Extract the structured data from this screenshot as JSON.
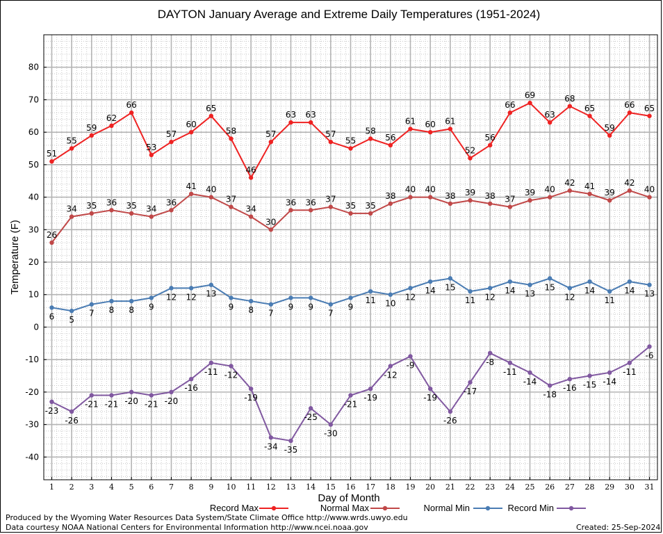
{
  "chart_data": {
    "type": "line",
    "title": "DAYTON January Average and Extreme Daily Temperatures (1951-2024)",
    "xlabel": "Day of Month",
    "ylabel": "Temperature (F)",
    "ylim": [
      -47,
      90
    ],
    "yticks": [
      -40,
      -30,
      -20,
      -10,
      0,
      10,
      20,
      30,
      40,
      50,
      60,
      70,
      80
    ],
    "xlim": [
      0.6,
      31.4
    ],
    "x": [
      1,
      2,
      3,
      4,
      5,
      6,
      7,
      8,
      9,
      10,
      11,
      12,
      13,
      14,
      15,
      16,
      17,
      18,
      19,
      20,
      21,
      22,
      23,
      24,
      25,
      26,
      27,
      28,
      29,
      30,
      31
    ],
    "grid": true,
    "legend": "bottom",
    "series": [
      {
        "name": "Record Max",
        "color": "#ee2222",
        "values": [
          51,
          55,
          59,
          62,
          66,
          53,
          57,
          60,
          65,
          58,
          46,
          57,
          63,
          63,
          57,
          55,
          58,
          56,
          61,
          60,
          61,
          52,
          56,
          66,
          69,
          63,
          68,
          65,
          59,
          66,
          65
        ]
      },
      {
        "name": "Normal Max",
        "color": "#c04848",
        "values": [
          26,
          34,
          35,
          36,
          35,
          34,
          36,
          41,
          40,
          37,
          34,
          30,
          36,
          36,
          37,
          35,
          35,
          38,
          40,
          40,
          38,
          39,
          38,
          37,
          39,
          40,
          42,
          41,
          39,
          42,
          40
        ]
      },
      {
        "name": "Normal Min",
        "color": "#4a7cb3",
        "values": [
          6,
          5,
          7,
          8,
          8,
          9,
          12,
          12,
          13,
          9,
          8,
          7,
          9,
          9,
          7,
          9,
          11,
          10,
          12,
          14,
          15,
          11,
          12,
          14,
          13,
          15,
          12,
          14,
          11,
          14,
          13
        ]
      },
      {
        "name": "Record Min",
        "color": "#8058a0",
        "values": [
          -23,
          -26,
          -21,
          -21,
          -20,
          -21,
          -20,
          -16,
          -11,
          -12,
          -19,
          -34,
          -35,
          -25,
          -30,
          -21,
          -19,
          -12,
          -9,
          -19,
          -26,
          -17,
          -8,
          -11,
          -14,
          -18,
          -16,
          -15,
          -14,
          -11,
          -6
        ]
      }
    ]
  },
  "footer": {
    "produced": "Produced by the Wyoming Water Resources Data System/State Climate Office http://www.wrds.uwyo.edu",
    "courtesy": "Data courtesy NOAA National Centers for Environmental Information http://www.ncei.noaa.gov",
    "created": "Created:  25-Sep-2024"
  }
}
